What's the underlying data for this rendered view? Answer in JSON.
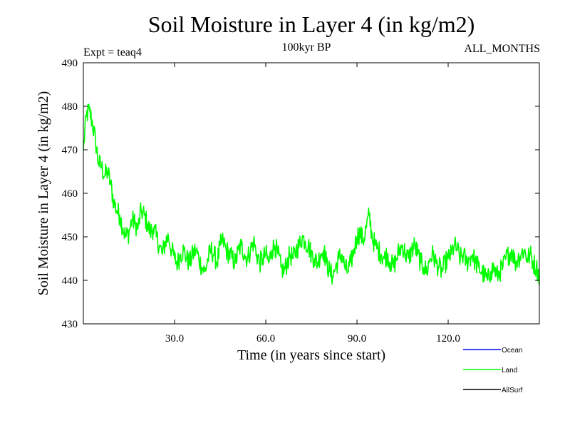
{
  "chart_data": {
    "type": "line",
    "title": "Soil Moisture in Layer 4 (in kg/m2)",
    "subtitle_left": "Expt = teaq4",
    "subtitle_center": "100kyr BP",
    "subtitle_right": "ALL_MONTHS",
    "xlabel": "Time (in years since start)",
    "ylabel": "Soil Moisture in Layer 4 (in kg/m2)",
    "xlim": [
      0,
      150
    ],
    "ylim": [
      430,
      490
    ],
    "x_ticks": [
      30,
      60,
      90,
      120
    ],
    "x_tick_labels": [
      "30.0",
      "60.0",
      "90.0",
      "120.0"
    ],
    "y_ticks": [
      430,
      440,
      450,
      460,
      470,
      480,
      490
    ],
    "y_tick_labels": [
      "430",
      "440",
      "450",
      "460",
      "470",
      "480",
      "490"
    ],
    "legend": [
      {
        "name": "Ocean",
        "color": "#0000ff"
      },
      {
        "name": "Land",
        "color": "#00ff00"
      },
      {
        "name": "AllSurf",
        "color": "#000000"
      }
    ],
    "series": [
      {
        "name": "Land",
        "color": "#00ff00",
        "x": [
          0,
          1,
          2,
          3,
          4,
          5,
          6,
          7,
          8,
          9,
          10,
          11,
          12,
          13,
          14,
          15,
          16,
          17,
          18,
          19,
          20,
          21,
          22,
          23,
          24,
          25,
          26,
          27,
          28,
          29,
          30,
          31,
          32,
          33,
          34,
          35,
          36,
          37,
          38,
          39,
          40,
          41,
          42,
          43,
          44,
          45,
          46,
          47,
          48,
          49,
          50,
          51,
          52,
          53,
          54,
          55,
          56,
          57,
          58,
          59,
          60,
          61,
          62,
          63,
          64,
          65,
          66,
          67,
          68,
          69,
          70,
          71,
          72,
          73,
          74,
          75,
          76,
          77,
          78,
          79,
          80,
          81,
          82,
          83,
          84,
          85,
          86,
          87,
          88,
          89,
          90,
          91,
          92,
          93,
          94,
          95,
          96,
          97,
          98,
          99,
          100,
          101,
          102,
          103,
          104,
          105,
          106,
          107,
          108,
          109,
          110,
          111,
          112,
          113,
          114,
          115,
          116,
          117,
          118,
          119,
          120,
          121,
          122,
          123,
          124,
          125,
          126,
          127,
          128,
          129,
          130,
          131,
          132,
          133,
          134,
          135,
          136,
          137,
          138,
          139,
          140,
          141,
          142,
          143,
          144,
          145,
          146,
          147,
          148,
          149,
          150
        ],
        "values": [
          470,
          478,
          479,
          476,
          472,
          467,
          466,
          464,
          465,
          462,
          458,
          456,
          455,
          452,
          450,
          451,
          454,
          453,
          452,
          456,
          455,
          453,
          451,
          452,
          450,
          448,
          446,
          449,
          450,
          447,
          445,
          444,
          446,
          447,
          445,
          444,
          446,
          447,
          445,
          443,
          442,
          445,
          447,
          446,
          444,
          448,
          449,
          447,
          446,
          445,
          444,
          447,
          448,
          446,
          445,
          447,
          449,
          446,
          444,
          445,
          446,
          444,
          447,
          448,
          446,
          443,
          442,
          444,
          446,
          445,
          447,
          448,
          450,
          449,
          448,
          446,
          445,
          444,
          446,
          447,
          444,
          442,
          441,
          443,
          445,
          446,
          443,
          442,
          444,
          447,
          450,
          451,
          449,
          452,
          455,
          450,
          448,
          447,
          446,
          445,
          446,
          444,
          443,
          445,
          447,
          448,
          446,
          445,
          447,
          448,
          446,
          444,
          443,
          442,
          445,
          446,
          444,
          443,
          442,
          444,
          445,
          446,
          448,
          447,
          445,
          446,
          444,
          445,
          446,
          444,
          443,
          442,
          441,
          440,
          442,
          443,
          441,
          442,
          443,
          445,
          446,
          447,
          444,
          445,
          446,
          447,
          445,
          446,
          444,
          443,
          441
        ]
      }
    ]
  }
}
